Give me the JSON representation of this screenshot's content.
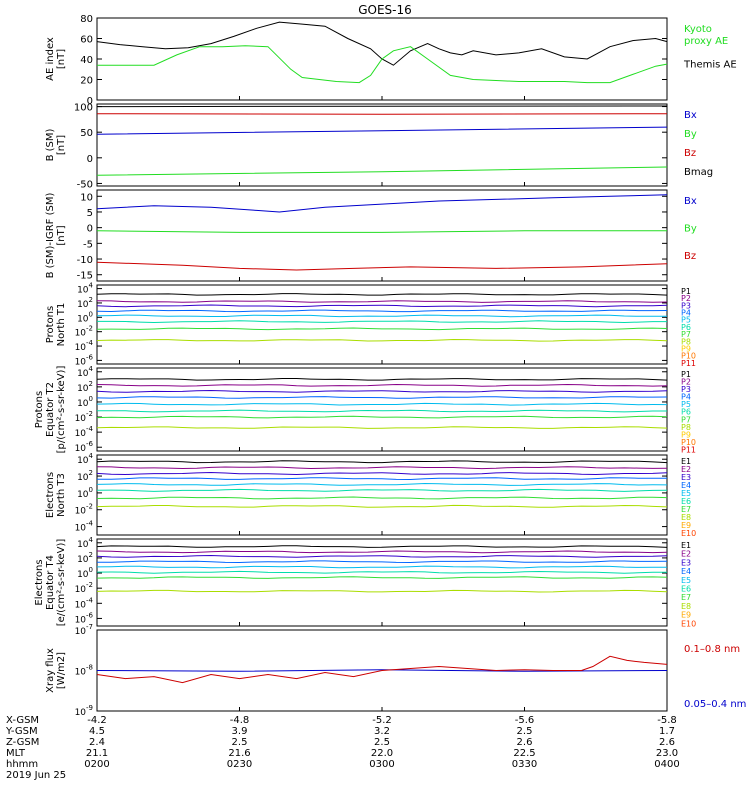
{
  "title": "GOES-16",
  "colors": {
    "black": "#000000",
    "green": "#22dd22",
    "blue": "#0000cc",
    "red": "#cc0000",
    "P": [
      "#000000",
      "#880088",
      "#3300cc",
      "#0066ff",
      "#00bbee",
      "#00ddaa",
      "#33dd33",
      "#aadd00",
      "#ffcc00",
      "#ff7700",
      "#dd0000"
    ],
    "E": [
      "#000000",
      "#880088",
      "#3300cc",
      "#0066ff",
      "#00bbee",
      "#00ddaa",
      "#33dd33",
      "#aadd00",
      "#ffaa00",
      "#ff4400",
      "#cc0000"
    ]
  },
  "footer": {
    "row_labels": [
      "X-GSM",
      "Y-GSM",
      "Z-GSM",
      "MLT",
      "hhmm",
      "2019 Jun 25"
    ],
    "columns": [
      [
        "-4.2",
        "4.5",
        "2.4",
        "21.1",
        "0200"
      ],
      [
        "-4.8",
        "3.9",
        "2.5",
        "21.6",
        "0230"
      ],
      [
        "-5.2",
        "3.2",
        "2.5",
        "22.0",
        "0300"
      ],
      [
        "-5.6",
        "2.5",
        "2.6",
        "22.5",
        "0330"
      ],
      [
        "-5.8",
        "1.7",
        "2.6",
        "23.0",
        "0400"
      ]
    ]
  },
  "chart_data": [
    {
      "type": "line",
      "ylabel": "AE index\n[nT]",
      "yticks": [
        "80",
        "60",
        "40",
        "20",
        "0"
      ],
      "ylim": [
        0,
        80
      ],
      "legend": [
        {
          "name": "Kyoto\nproxy AE",
          "color": "green"
        },
        {
          "name": "Themis AE",
          "color": "black"
        }
      ],
      "series": [
        {
          "name": "Themis AE",
          "color": "black",
          "t": [
            0,
            0.04,
            0.08,
            0.12,
            0.16,
            0.2,
            0.24,
            0.28,
            0.32,
            0.36,
            0.4,
            0.44,
            0.48,
            0.5,
            0.52,
            0.55,
            0.58,
            0.6,
            0.62,
            0.64,
            0.66,
            0.7,
            0.74,
            0.78,
            0.82,
            0.86,
            0.9,
            0.94,
            0.98,
            1.0
          ],
          "values": [
            57,
            54,
            52,
            50,
            51,
            55,
            62,
            70,
            76,
            74,
            72,
            60,
            50,
            40,
            34,
            48,
            55,
            50,
            46,
            44,
            48,
            44,
            46,
            50,
            42,
            40,
            52,
            58,
            60,
            57
          ]
        },
        {
          "name": "Kyoto proxy AE",
          "color": "green",
          "t": [
            0,
            0.1,
            0.14,
            0.18,
            0.22,
            0.26,
            0.3,
            0.34,
            0.36,
            0.42,
            0.46,
            0.48,
            0.5,
            0.52,
            0.55,
            0.58,
            0.62,
            0.66,
            0.7,
            0.74,
            0.78,
            0.82,
            0.86,
            0.9,
            0.94,
            0.98,
            1.0
          ],
          "values": [
            34,
            34,
            44,
            52,
            52,
            53,
            52,
            30,
            22,
            18,
            17,
            24,
            40,
            48,
            52,
            40,
            24,
            20,
            19,
            18,
            18,
            18,
            17,
            17,
            25,
            33,
            35
          ]
        }
      ]
    },
    {
      "type": "line",
      "ylabel": "B (SM)\n[nT]",
      "yticks": [
        "100",
        "50",
        "0",
        "-50"
      ],
      "ylim": [
        -55,
        105
      ],
      "legend": [
        {
          "name": "Bx",
          "color": "blue"
        },
        {
          "name": "By",
          "color": "green"
        },
        {
          "name": "Bz",
          "color": "red"
        },
        {
          "name": "Bmag",
          "color": "black"
        }
      ],
      "series": [
        {
          "name": "Bmag",
          "color": "black",
          "t": [
            0,
            1
          ],
          "values": [
            100,
            101
          ]
        },
        {
          "name": "Bz",
          "color": "red",
          "t": [
            0,
            0.5,
            1
          ],
          "values": [
            86,
            85,
            86
          ]
        },
        {
          "name": "Bx",
          "color": "blue",
          "t": [
            0,
            0.5,
            1
          ],
          "values": [
            46,
            53,
            60
          ]
        },
        {
          "name": "By",
          "color": "green",
          "t": [
            0,
            0.5,
            1
          ],
          "values": [
            -34,
            -27,
            -18
          ]
        }
      ]
    },
    {
      "type": "line",
      "ylabel": "B (SM)-IGRF (SM)\n[nT]",
      "yticks": [
        "10",
        "5",
        "0",
        "-5",
        "-10",
        "-15"
      ],
      "ylim": [
        -17,
        12
      ],
      "legend": [
        {
          "name": "Bx",
          "color": "blue"
        },
        {
          "name": "By",
          "color": "green"
        },
        {
          "name": "Bz",
          "color": "red"
        }
      ],
      "series": [
        {
          "name": "Bx",
          "color": "blue",
          "t": [
            0,
            0.1,
            0.2,
            0.28,
            0.32,
            0.4,
            0.5,
            0.6,
            0.7,
            0.8,
            0.9,
            1.0
          ],
          "values": [
            6,
            7,
            6.5,
            5.5,
            5,
            6.5,
            7.5,
            8.5,
            9,
            9.5,
            10,
            10.5
          ]
        },
        {
          "name": "By",
          "color": "green",
          "t": [
            0,
            0.25,
            0.5,
            0.75,
            1.0
          ],
          "values": [
            -1,
            -1.5,
            -1.5,
            -1,
            -1
          ]
        },
        {
          "name": "Bz",
          "color": "red",
          "t": [
            0,
            0.15,
            0.25,
            0.35,
            0.45,
            0.55,
            0.7,
            0.85,
            1.0
          ],
          "values": [
            -11,
            -12,
            -13,
            -13.5,
            -13,
            -12.5,
            -13,
            -12.5,
            -11.5
          ]
        }
      ]
    },
    {
      "type": "line",
      "ylabel": "Protons\nNorth T1",
      "yscale": "log",
      "ytick_exponents": [
        4,
        2,
        0,
        -2,
        -4,
        -6
      ],
      "ylim_exp": [
        -6.5,
        4.5
      ],
      "legend": [
        "P1",
        "P2",
        "P3",
        "P4",
        "P5",
        "P6",
        "P7",
        "P8",
        "P9",
        "P10",
        "P11"
      ],
      "levels": [
        3.2,
        2.2,
        1.6,
        0.9,
        0.2,
        -0.6,
        -1.6,
        -3.2,
        null,
        null,
        null
      ]
    },
    {
      "type": "line",
      "ylabel": "Protons\nEquator T2\n[p/(cm²-s-sr-keV)]",
      "yscale": "log",
      "ytick_exponents": [
        4,
        2,
        0,
        -2,
        -4,
        -6
      ],
      "ylim_exp": [
        -6.5,
        4.5
      ],
      "legend": [
        "P1",
        "P2",
        "P3",
        "P4",
        "P5",
        "P6",
        "P7",
        "P8",
        "P9",
        "P10",
        "P11"
      ],
      "levels": [
        3.0,
        2.2,
        1.4,
        0.6,
        -0.3,
        -1.2,
        -2.0,
        -3.4,
        null,
        null,
        null
      ]
    },
    {
      "type": "line",
      "ylabel": "Electrons\nNorth T3",
      "yscale": "log",
      "ytick_exponents": [
        4,
        2,
        0,
        -2,
        -4
      ],
      "ylim_exp": [
        -5,
        4.5
      ],
      "legend": [
        "E1",
        "E2",
        "E3",
        "E4",
        "E5",
        "E6",
        "E7",
        "E8",
        "E9",
        "E10"
      ],
      "levels": [
        3.7,
        3.0,
        2.3,
        1.7,
        1.0,
        0.3,
        -0.6,
        -1.6,
        null,
        null
      ]
    },
    {
      "type": "line",
      "ylabel": "Electrons\nEquator T4\n[e/(cm²-s-sr-keV)]",
      "yscale": "log",
      "ytick_exponents": [
        4,
        2,
        0,
        -2,
        -4,
        -6
      ],
      "ylim_exp": [
        -7,
        4.5
      ],
      "legend": [
        "E1",
        "E2",
        "E3",
        "E4",
        "E5",
        "E6",
        "E7",
        "E8",
        "E9",
        "E10"
      ],
      "levels": [
        3.5,
        2.8,
        2.2,
        1.5,
        0.8,
        0.1,
        -0.6,
        -2.4,
        null,
        null
      ]
    },
    {
      "type": "line",
      "ylabel": "Xray flux\n[W/m2]",
      "yscale": "log",
      "ytick_exponents": [
        -7,
        -8,
        -9
      ],
      "ylim_exp": [
        -9,
        -7
      ],
      "legend": [
        {
          "name": "0.1–0.8 nm",
          "color": "red"
        },
        {
          "name": "0.05–0.4 nm",
          "color": "blue"
        }
      ],
      "series": [
        {
          "name": "0.05-0.4 nm",
          "color": "blue",
          "t": [
            0,
            0.25,
            0.5,
            0.75,
            1.0
          ],
          "values_exp": [
            -8.0,
            -8.02,
            -7.98,
            -8.02,
            -8.0
          ]
        },
        {
          "name": "0.1-0.8 nm",
          "color": "red",
          "t": [
            0,
            0.05,
            0.1,
            0.15,
            0.2,
            0.25,
            0.3,
            0.35,
            0.4,
            0.45,
            0.5,
            0.55,
            0.6,
            0.65,
            0.7,
            0.75,
            0.8,
            0.85,
            0.87,
            0.9,
            0.93,
            0.96,
            1.0
          ],
          "values_exp": [
            -8.1,
            -8.2,
            -8.15,
            -8.3,
            -8.1,
            -8.2,
            -8.1,
            -8.2,
            -8.05,
            -8.15,
            -8.0,
            -7.95,
            -7.9,
            -7.95,
            -8.0,
            -7.98,
            -8.0,
            -8.0,
            -7.9,
            -7.65,
            -7.75,
            -7.8,
            -7.85
          ]
        }
      ]
    }
  ]
}
